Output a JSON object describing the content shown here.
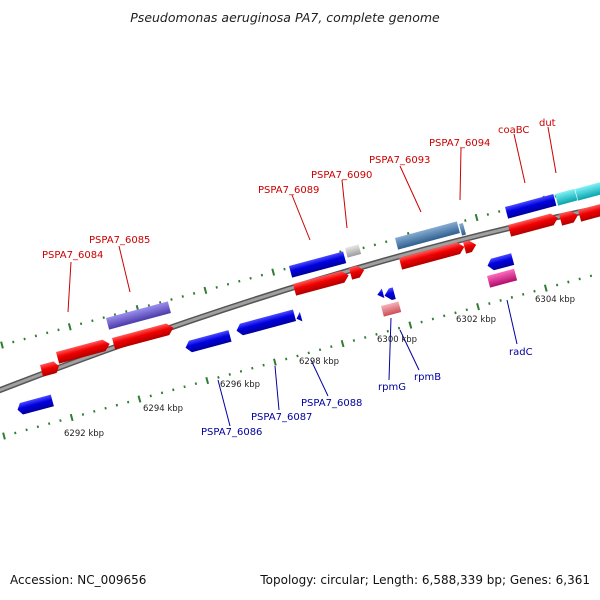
{
  "title": "Pseudomonas aeruginosa PA7, complete genome",
  "footer": {
    "accession": "Accession: NC_009656",
    "topology": "Topology: circular; Length: 6,588,339 bp; Genes: 6,361"
  },
  "colors": {
    "backbone": "#8a8a8a",
    "tick": "#2e7d32",
    "label_top": "#cc0000",
    "label_bottom": "#00009f"
  },
  "kbp_labels": [
    "6292 kbp",
    "6294 kbp",
    "6296 kbp",
    "6298 kbp",
    "6300 kbp",
    "6302 kbp",
    "6304 kbp"
  ],
  "top_labels": [
    "PSPA7_6084",
    "PSPA7_6085",
    "PSPA7_6089",
    "PSPA7_6090",
    "PSPA7_6093",
    "PSPA7_6094",
    "coaBC",
    "dut"
  ],
  "bottom_labels": [
    "PSPA7_6086",
    "PSPA7_6087",
    "PSPA7_6088",
    "rpmG",
    "rpmB",
    "radC"
  ],
  "gene_colors": {
    "forward": "#ee0000",
    "reverse": "#0000dd",
    "protein_family": "#6a5acd",
    "steel": "#4a7fb0",
    "gray": "#c8c8c8",
    "cyan": "#19cdd6",
    "pink_rna": "#e87a86",
    "magenta": "#e8198f"
  }
}
